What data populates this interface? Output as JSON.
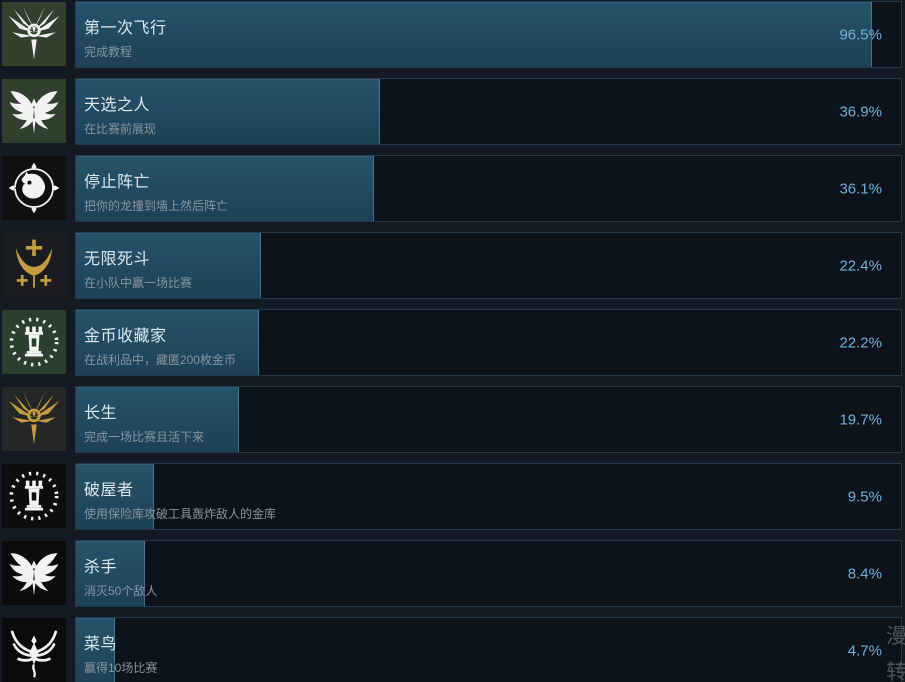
{
  "colors": {
    "page_bg": "#131a23",
    "bar_bg": "#0d131b",
    "bar_border": "#223a4e",
    "fill_top": "#27536c",
    "fill_bottom": "#1d4156",
    "title": "#dce8ee",
    "desc": "#8a949c",
    "percent": "#6fb0dc",
    "watermark": "#4a545e",
    "gold_icon": "#c59d3e",
    "white_icon": "#f2f2f2"
  },
  "achievements": [
    {
      "title": "第一次飞行",
      "desc": "完成教程",
      "percent": 96.5,
      "percent_label": "96.5%",
      "icon": "winged-crest-icon"
    },
    {
      "title": "天选之人",
      "desc": "在比赛前展现",
      "percent": 36.9,
      "percent_label": "36.9%",
      "icon": "eagle-icon"
    },
    {
      "title": "停止阵亡",
      "desc": "把你的龙撞到墙上然后阵亡",
      "percent": 36.1,
      "percent_label": "36.1%",
      "icon": "dragon-head-icon"
    },
    {
      "title": "无限死斗",
      "desc": "在小队中赢一场比赛",
      "percent": 22.4,
      "percent_label": "22.4%",
      "icon": "crescent-crosses-icon"
    },
    {
      "title": "金币收藏家",
      "desc": "在战利品中，藏匿200枚金币",
      "percent": 22.2,
      "percent_label": "22.2%",
      "icon": "tower-rays-icon"
    },
    {
      "title": "长生",
      "desc": "完成一场比赛且活下来",
      "percent": 19.7,
      "percent_label": "19.7%",
      "icon": "gold-winged-crest-icon"
    },
    {
      "title": "破屋者",
      "desc": "使用保险库攻破工具轰炸敌人的金库",
      "percent": 9.5,
      "percent_label": "9.5%",
      "icon": "tower-rays-icon"
    },
    {
      "title": "杀手",
      "desc": "消灭50个敌人",
      "percent": 8.4,
      "percent_label": "8.4%",
      "icon": "eagle-icon"
    },
    {
      "title": "菜鸟",
      "desc": "赢得10场比赛",
      "percent": 4.7,
      "percent_label": "4.7%",
      "icon": "phoenix-icon"
    }
  ],
  "watermark": {
    "char_top": "漫",
    "char_bottom": "转"
  }
}
